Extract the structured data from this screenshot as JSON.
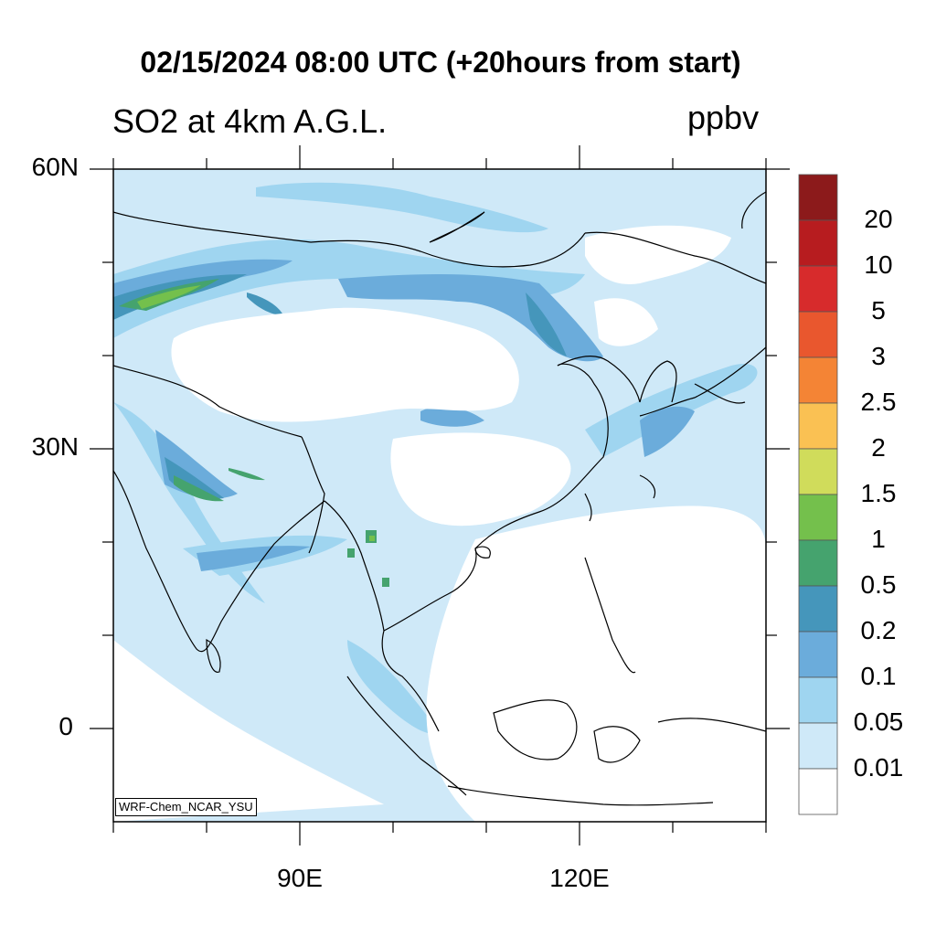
{
  "title": "02/15/2024 08:00 UTC (+20hours from start)",
  "subtitle": "SO2 at 4km A.G.L.",
  "units": "ppbv",
  "model_tag": "WRF-Chem_NCAR_YSU",
  "axes": {
    "y_labels": [
      "60N",
      "30N",
      "0"
    ],
    "x_labels": [
      "90E",
      "120E"
    ],
    "lon_range": [
      70,
      140
    ],
    "lat_range": [
      -10,
      60
    ]
  },
  "colorbar": {
    "labels": [
      "20",
      "10",
      "5",
      "3",
      "2.5",
      "2",
      "1.5",
      "1",
      "0.5",
      "0.2",
      "0.1",
      "0.05",
      "0.01"
    ],
    "colors_top_to_bottom": [
      "#8c1a1b",
      "#b71c1f",
      "#d72b2c",
      "#e9572e",
      "#f48435",
      "#fac153",
      "#d0dc5b",
      "#74c04c",
      "#45a36e",
      "#4596bb",
      "#6bacdb",
      "#9fd5f0",
      "#cfe9f8",
      "#ffffff"
    ]
  }
}
